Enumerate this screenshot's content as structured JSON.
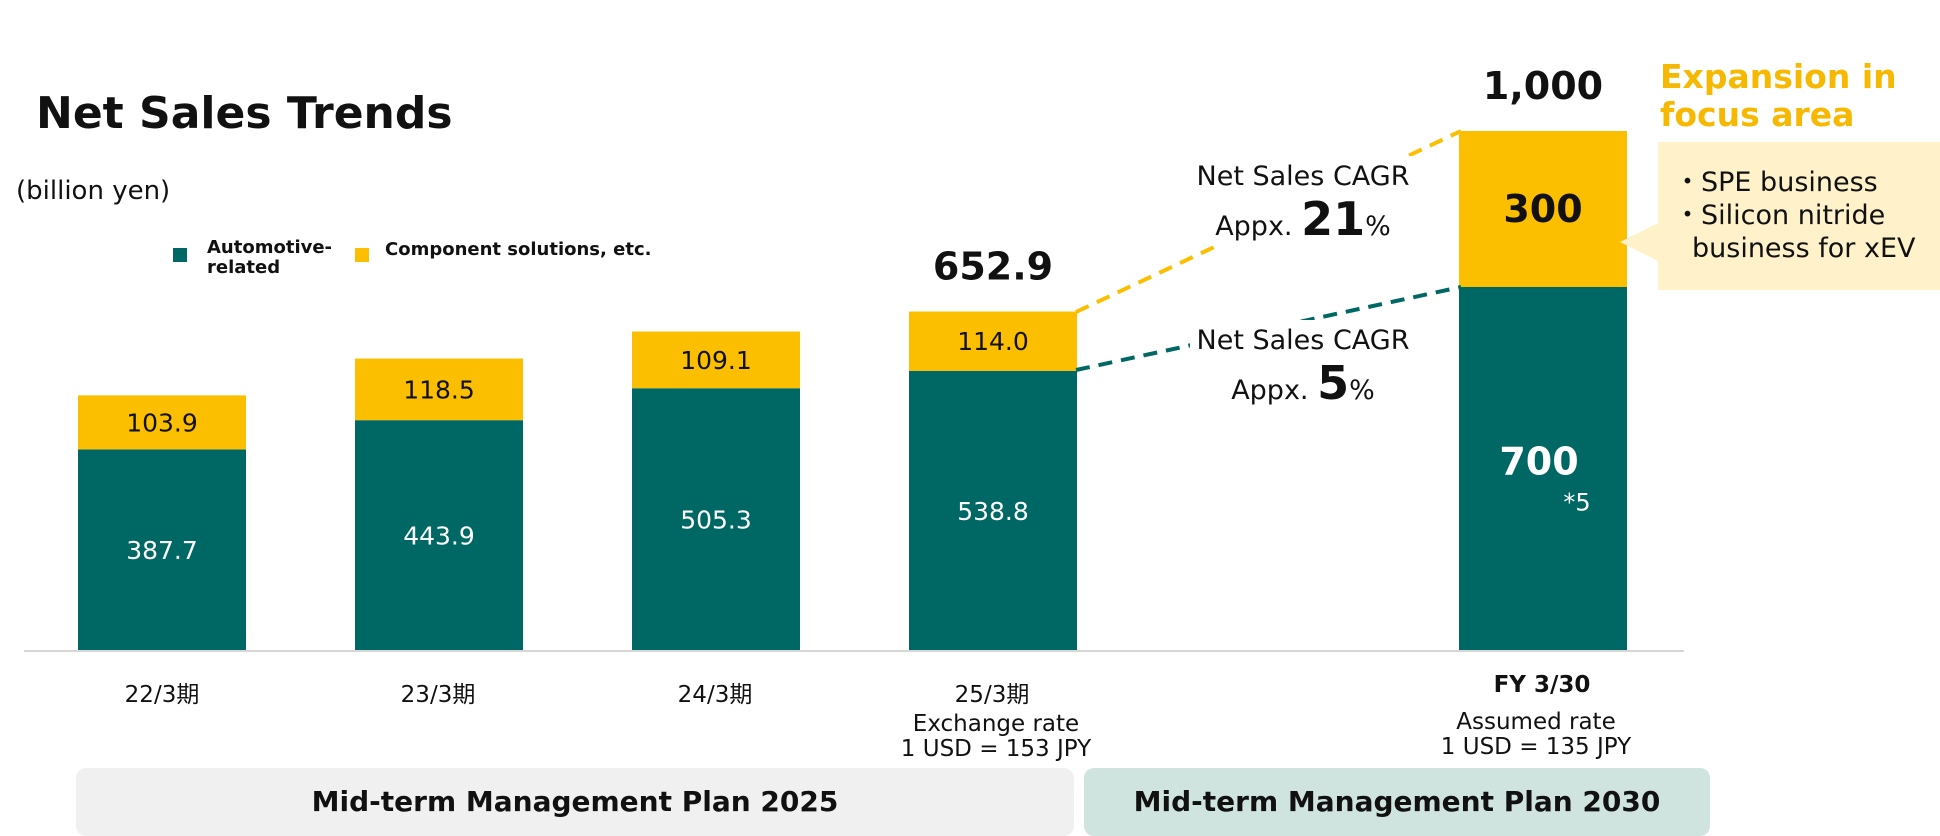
{
  "title": "Net Sales Trends",
  "unit": "(billion yen)",
  "legend": {
    "automotive": "Automotive-related",
    "component": "Component solutions, etc."
  },
  "colors": {
    "automotive": "#006864",
    "component": "#fbbf00",
    "focus_text": "#f6b800",
    "focus_box": "#fff1c9"
  },
  "chart_data": {
    "type": "bar",
    "stacked": true,
    "categories": [
      "22/3期",
      "23/3期",
      "24/3期",
      "25/3期",
      "FY 3/30"
    ],
    "series": [
      {
        "name": "Automotive-related",
        "values": [
          387.7,
          443.9,
          505.3,
          538.8,
          700
        ]
      },
      {
        "name": "Component solutions, etc.",
        "values": [
          103.9,
          118.5,
          109.1,
          114.0,
          300
        ]
      }
    ],
    "value_labels": {
      "automotive": [
        "387.7",
        "443.9",
        "505.3",
        "538.8",
        "700"
      ],
      "component": [
        "103.9",
        "118.5",
        "109.1",
        "114.0",
        "300"
      ]
    },
    "totals": [
      {
        "index": 3,
        "label": "652.9"
      },
      {
        "index": 4,
        "label": "1,000"
      }
    ],
    "footnote_mark": "*5",
    "ylim": [
      0,
      1000
    ],
    "grid": false,
    "legend_position": "top-left"
  },
  "cagr": {
    "component": {
      "line1": "Net Sales CAGR",
      "prefix": "Appx. ",
      "value": "21",
      "suffix": "%"
    },
    "automotive": {
      "line1": "Net Sales CAGR",
      "prefix": "Appx. ",
      "value": "5",
      "suffix": "%"
    }
  },
  "focus": {
    "title_line1": "Expansion in",
    "title_line2": "focus area",
    "item1": "・SPE business",
    "item2": "・Silicon nitride",
    "item3": "business for xEV"
  },
  "notes": {
    "fy25_line1": "Exchange rate",
    "fy25_line2": "1 USD = 153 JPY",
    "fy30_line1": "Assumed rate",
    "fy30_line2": "1 USD = 135 JPY"
  },
  "plans": {
    "p2025": "Mid-term Management Plan 2025",
    "p2030": "Mid-term Management Plan 2030"
  }
}
